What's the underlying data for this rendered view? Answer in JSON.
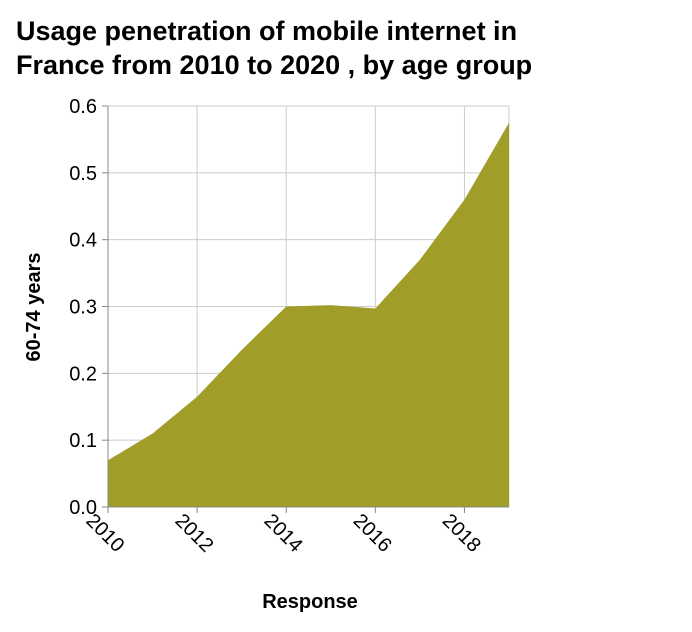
{
  "chart_data": {
    "type": "area",
    "title_lines": [
      "Usage penetration of mobile internet in",
      "France from 2010 to 2020 , by age group"
    ],
    "xlabel": "Response",
    "ylabel": "60-74 years",
    "x": [
      2010,
      2011,
      2012,
      2013,
      2014,
      2015,
      2016,
      2017,
      2018,
      2019
    ],
    "series": [
      {
        "values": [
          0.07,
          0.11,
          0.165,
          0.235,
          0.3,
          0.302,
          0.297,
          0.37,
          0.46,
          0.575
        ]
      }
    ],
    "xlim": [
      2010,
      2019
    ],
    "ylim": [
      0,
      0.6
    ],
    "x_ticks": [
      "2010",
      "2012",
      "2014",
      "2016",
      "2018"
    ],
    "y_ticks": [
      "0.0",
      "0.1",
      "0.2",
      "0.3",
      "0.4",
      "0.5",
      "0.6"
    ],
    "grid": true,
    "legend": "none",
    "colors": {
      "fill": "#a09e28",
      "grid": "#cccccc",
      "axis": "#888888"
    }
  }
}
